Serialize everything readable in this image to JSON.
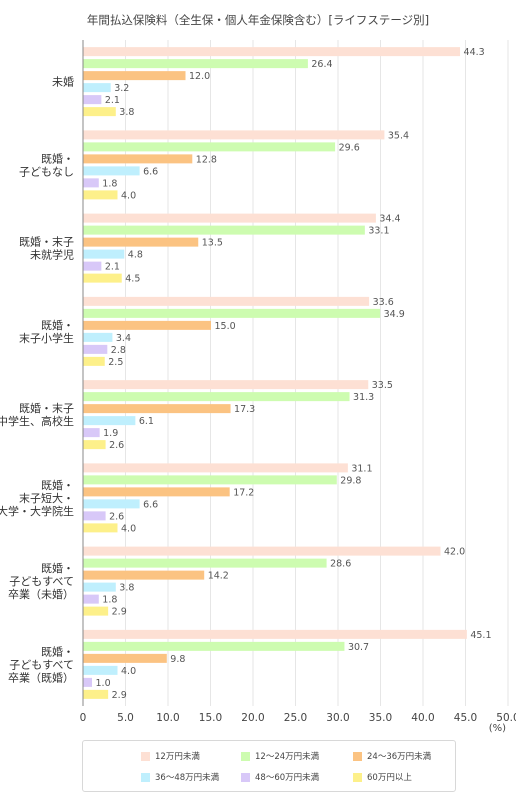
{
  "chart_data": {
    "type": "bar",
    "orientation": "horizontal",
    "title": "年間払込保険料（全生保・個人年金保険含む）[ライフステージ別]",
    "unit_label": "(%)",
    "categories": [
      [
        "未婚"
      ],
      [
        "既婚・",
        "子どもなし"
      ],
      [
        "既婚・末子",
        "未就学児"
      ],
      [
        "既婚・",
        "末子小学生"
      ],
      [
        "既婚・末子",
        "中学生、高校生"
      ],
      [
        "既婚・",
        "末子短大・",
        "大学・大学院生"
      ],
      [
        "既婚・",
        "子どもすべて",
        "卒業（未婚）"
      ],
      [
        "既婚・",
        "子どもすべて",
        "卒業（既婚）"
      ]
    ],
    "xlim": [
      0,
      50
    ],
    "xticks": [
      "0",
      "5.0",
      "10.0",
      "15.0",
      "20.0",
      "25.0",
      "30.0",
      "35.0",
      "40.0",
      "45.0",
      "50.0"
    ],
    "grid": true,
    "legend_position": "bottom",
    "series": [
      {
        "name": "12万円未満",
        "color": "#fde0d4",
        "values": [
          44.3,
          35.4,
          34.4,
          33.6,
          33.5,
          31.1,
          42.0,
          45.1
        ]
      },
      {
        "name": "12～24万円未満",
        "color": "#cdfcb0",
        "values": [
          26.4,
          29.6,
          33.1,
          34.9,
          31.3,
          29.8,
          28.6,
          30.7
        ]
      },
      {
        "name": "24～36万円未満",
        "color": "#fbc382",
        "values": [
          12.0,
          12.8,
          13.5,
          15.0,
          17.3,
          17.2,
          14.2,
          9.8
        ]
      },
      {
        "name": "36～48万円未満",
        "color": "#bfeffd",
        "values": [
          3.2,
          6.6,
          4.8,
          3.4,
          6.1,
          6.6,
          3.8,
          4.0
        ]
      },
      {
        "name": "48～60万円未満",
        "color": "#d8c8f8",
        "values": [
          2.1,
          1.8,
          2.1,
          2.8,
          1.9,
          2.6,
          1.8,
          1.0
        ]
      },
      {
        "name": "60万円以上",
        "color": "#fdf08a",
        "values": [
          3.8,
          4.0,
          4.5,
          2.5,
          2.6,
          4.0,
          2.9,
          2.9
        ]
      }
    ]
  }
}
